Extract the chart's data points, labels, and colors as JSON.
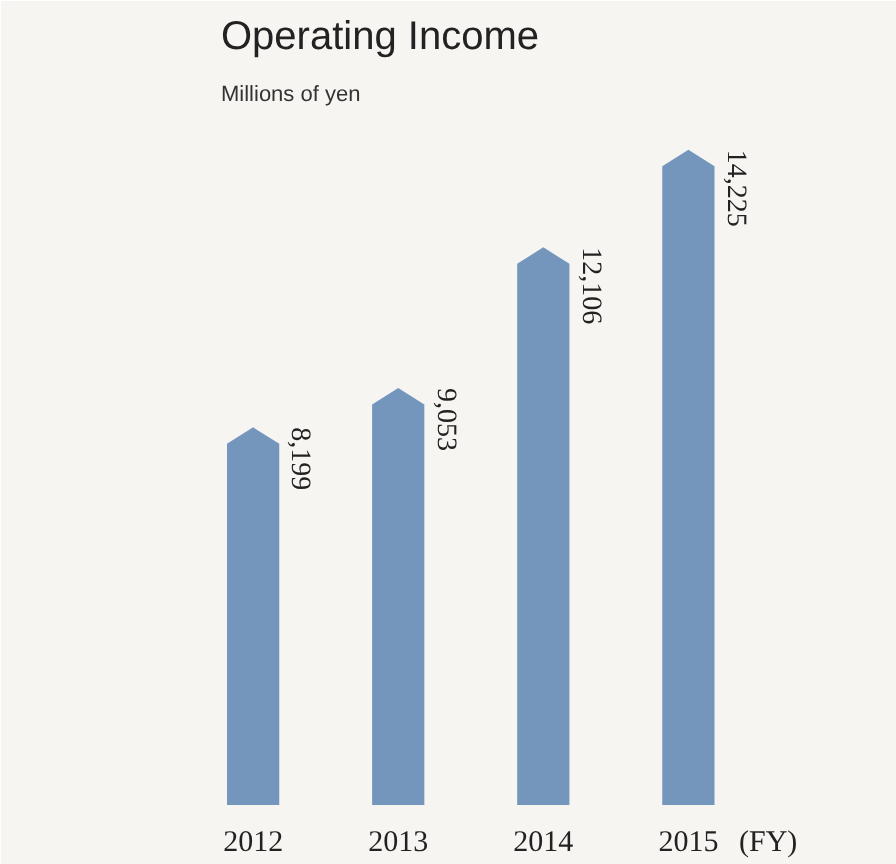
{
  "chart_data": {
    "type": "bar",
    "title": "Operating Income",
    "ylabel": "Millions of yen",
    "xlabel": "(FY)",
    "categories": [
      "2012",
      "2013",
      "2014",
      "2015"
    ],
    "values": [
      8199,
      9053,
      12106,
      14225
    ],
    "value_labels": [
      "8,199",
      "9,053",
      "12,106",
      "14,225"
    ],
    "color": "#7496bd",
    "grid": false
  }
}
